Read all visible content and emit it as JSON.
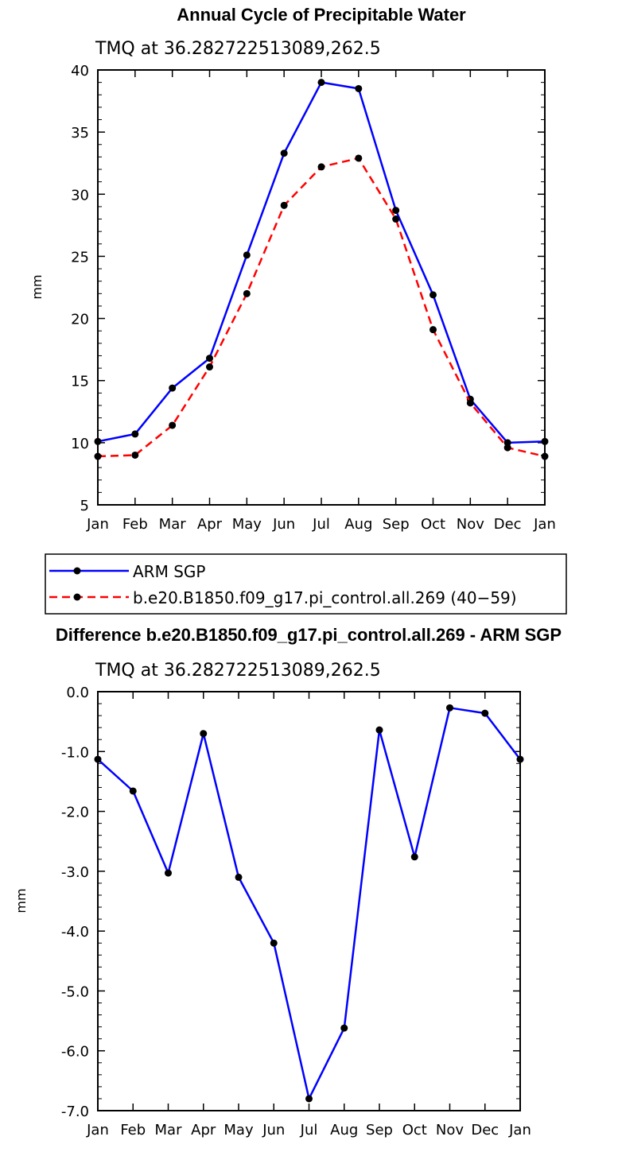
{
  "chart_data": [
    {
      "type": "line",
      "title": "Annual Cycle of Precipitable Water",
      "subtitle": "TMQ at 36.282722513089,262.5",
      "ylabel": "mm",
      "xlabel": "",
      "ylim": [
        5,
        40
      ],
      "yticks": [
        "5",
        "10",
        "15",
        "20",
        "25",
        "30",
        "35",
        "40"
      ],
      "categories": [
        "Jan",
        "Feb",
        "Mar",
        "Apr",
        "May",
        "Jun",
        "Jul",
        "Aug",
        "Sep",
        "Oct",
        "Nov",
        "Dec",
        "Jan"
      ],
      "series": [
        {
          "name": "ARM SGP",
          "color": "#0000ff",
          "dash": "solid",
          "values": [
            10.1,
            10.7,
            14.4,
            16.8,
            25.1,
            33.3,
            39.0,
            38.5,
            28.7,
            21.9,
            13.5,
            10.0,
            10.1
          ]
        },
        {
          "name": "b.e20.B1850.f09_g17.pi_control.all.269 (40−59)",
          "color": "#ff0000",
          "dash": "dashed",
          "values": [
            8.9,
            9.0,
            11.4,
            16.1,
            22.0,
            29.1,
            32.2,
            32.9,
            28.0,
            19.1,
            13.2,
            9.6,
            8.9
          ]
        }
      ],
      "legend_position": "below"
    },
    {
      "type": "line",
      "title": "Difference b.e20.B1850.f09_g17.pi_control.all.269 - ARM SGP",
      "subtitle": "TMQ at 36.282722513089,262.5",
      "ylabel": "mm",
      "xlabel": "",
      "ylim": [
        -7.0,
        0.0
      ],
      "yticks": [
        "0.0",
        "-1.0",
        "-2.0",
        "-3.0",
        "-4.0",
        "-5.0",
        "-6.0",
        "-7.0"
      ],
      "categories": [
        "Jan",
        "Feb",
        "Mar",
        "Apr",
        "May",
        "Jun",
        "Jul",
        "Aug",
        "Sep",
        "Oct",
        "Nov",
        "Dec",
        "Jan"
      ],
      "series": [
        {
          "name": "Difference",
          "color": "#0000ff",
          "dash": "solid",
          "values": [
            -1.13,
            -1.66,
            -3.03,
            -0.7,
            -3.1,
            -4.2,
            -6.8,
            -5.62,
            -0.64,
            -2.76,
            -0.27,
            -0.36,
            -1.13
          ]
        }
      ]
    }
  ]
}
